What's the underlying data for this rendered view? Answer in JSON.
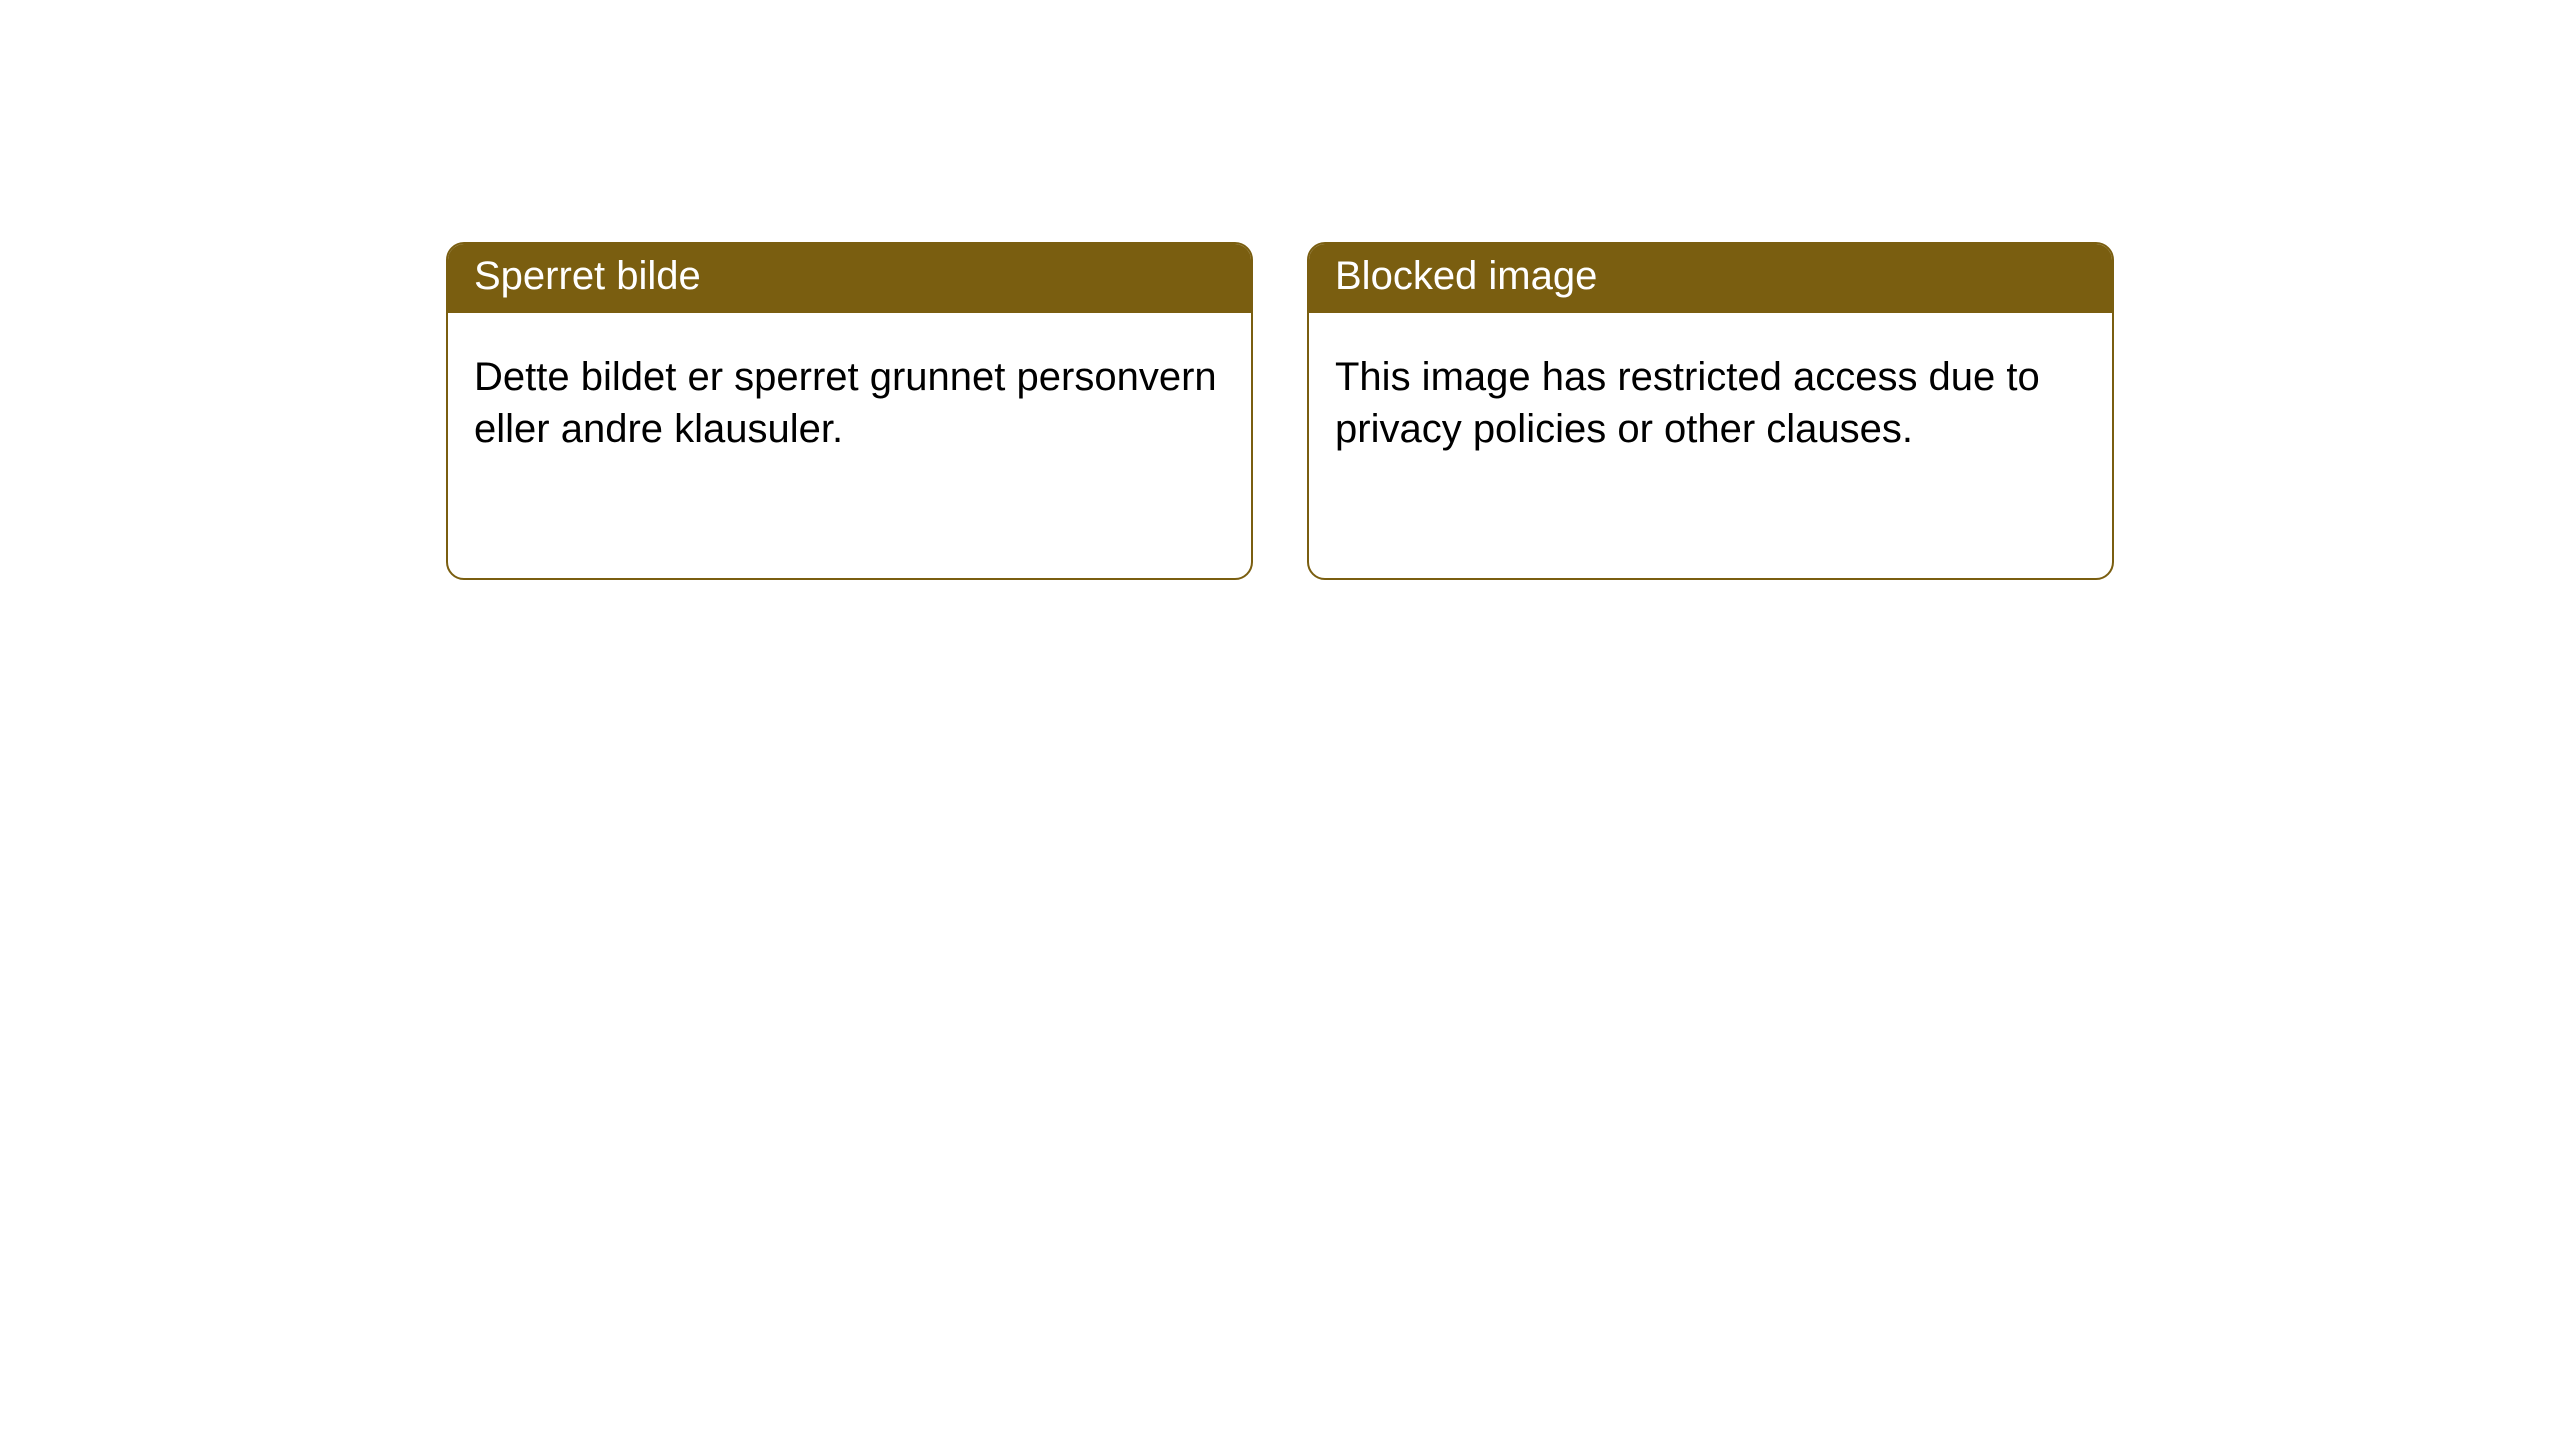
{
  "cards": [
    {
      "title": "Sperret bilde",
      "body": "Dette bildet er sperret grunnet personvern eller andre klausuler."
    },
    {
      "title": "Blocked image",
      "body": "This image has restricted access due to privacy policies or other clauses."
    }
  ],
  "style": {
    "header_bg": "#7a5e10",
    "header_text_color": "#ffffff",
    "border_color": "#7a5e10",
    "body_text_color": "#000000",
    "card_bg": "#ffffff",
    "header_fontsize": 40,
    "body_fontsize": 40,
    "border_radius": 18
  }
}
